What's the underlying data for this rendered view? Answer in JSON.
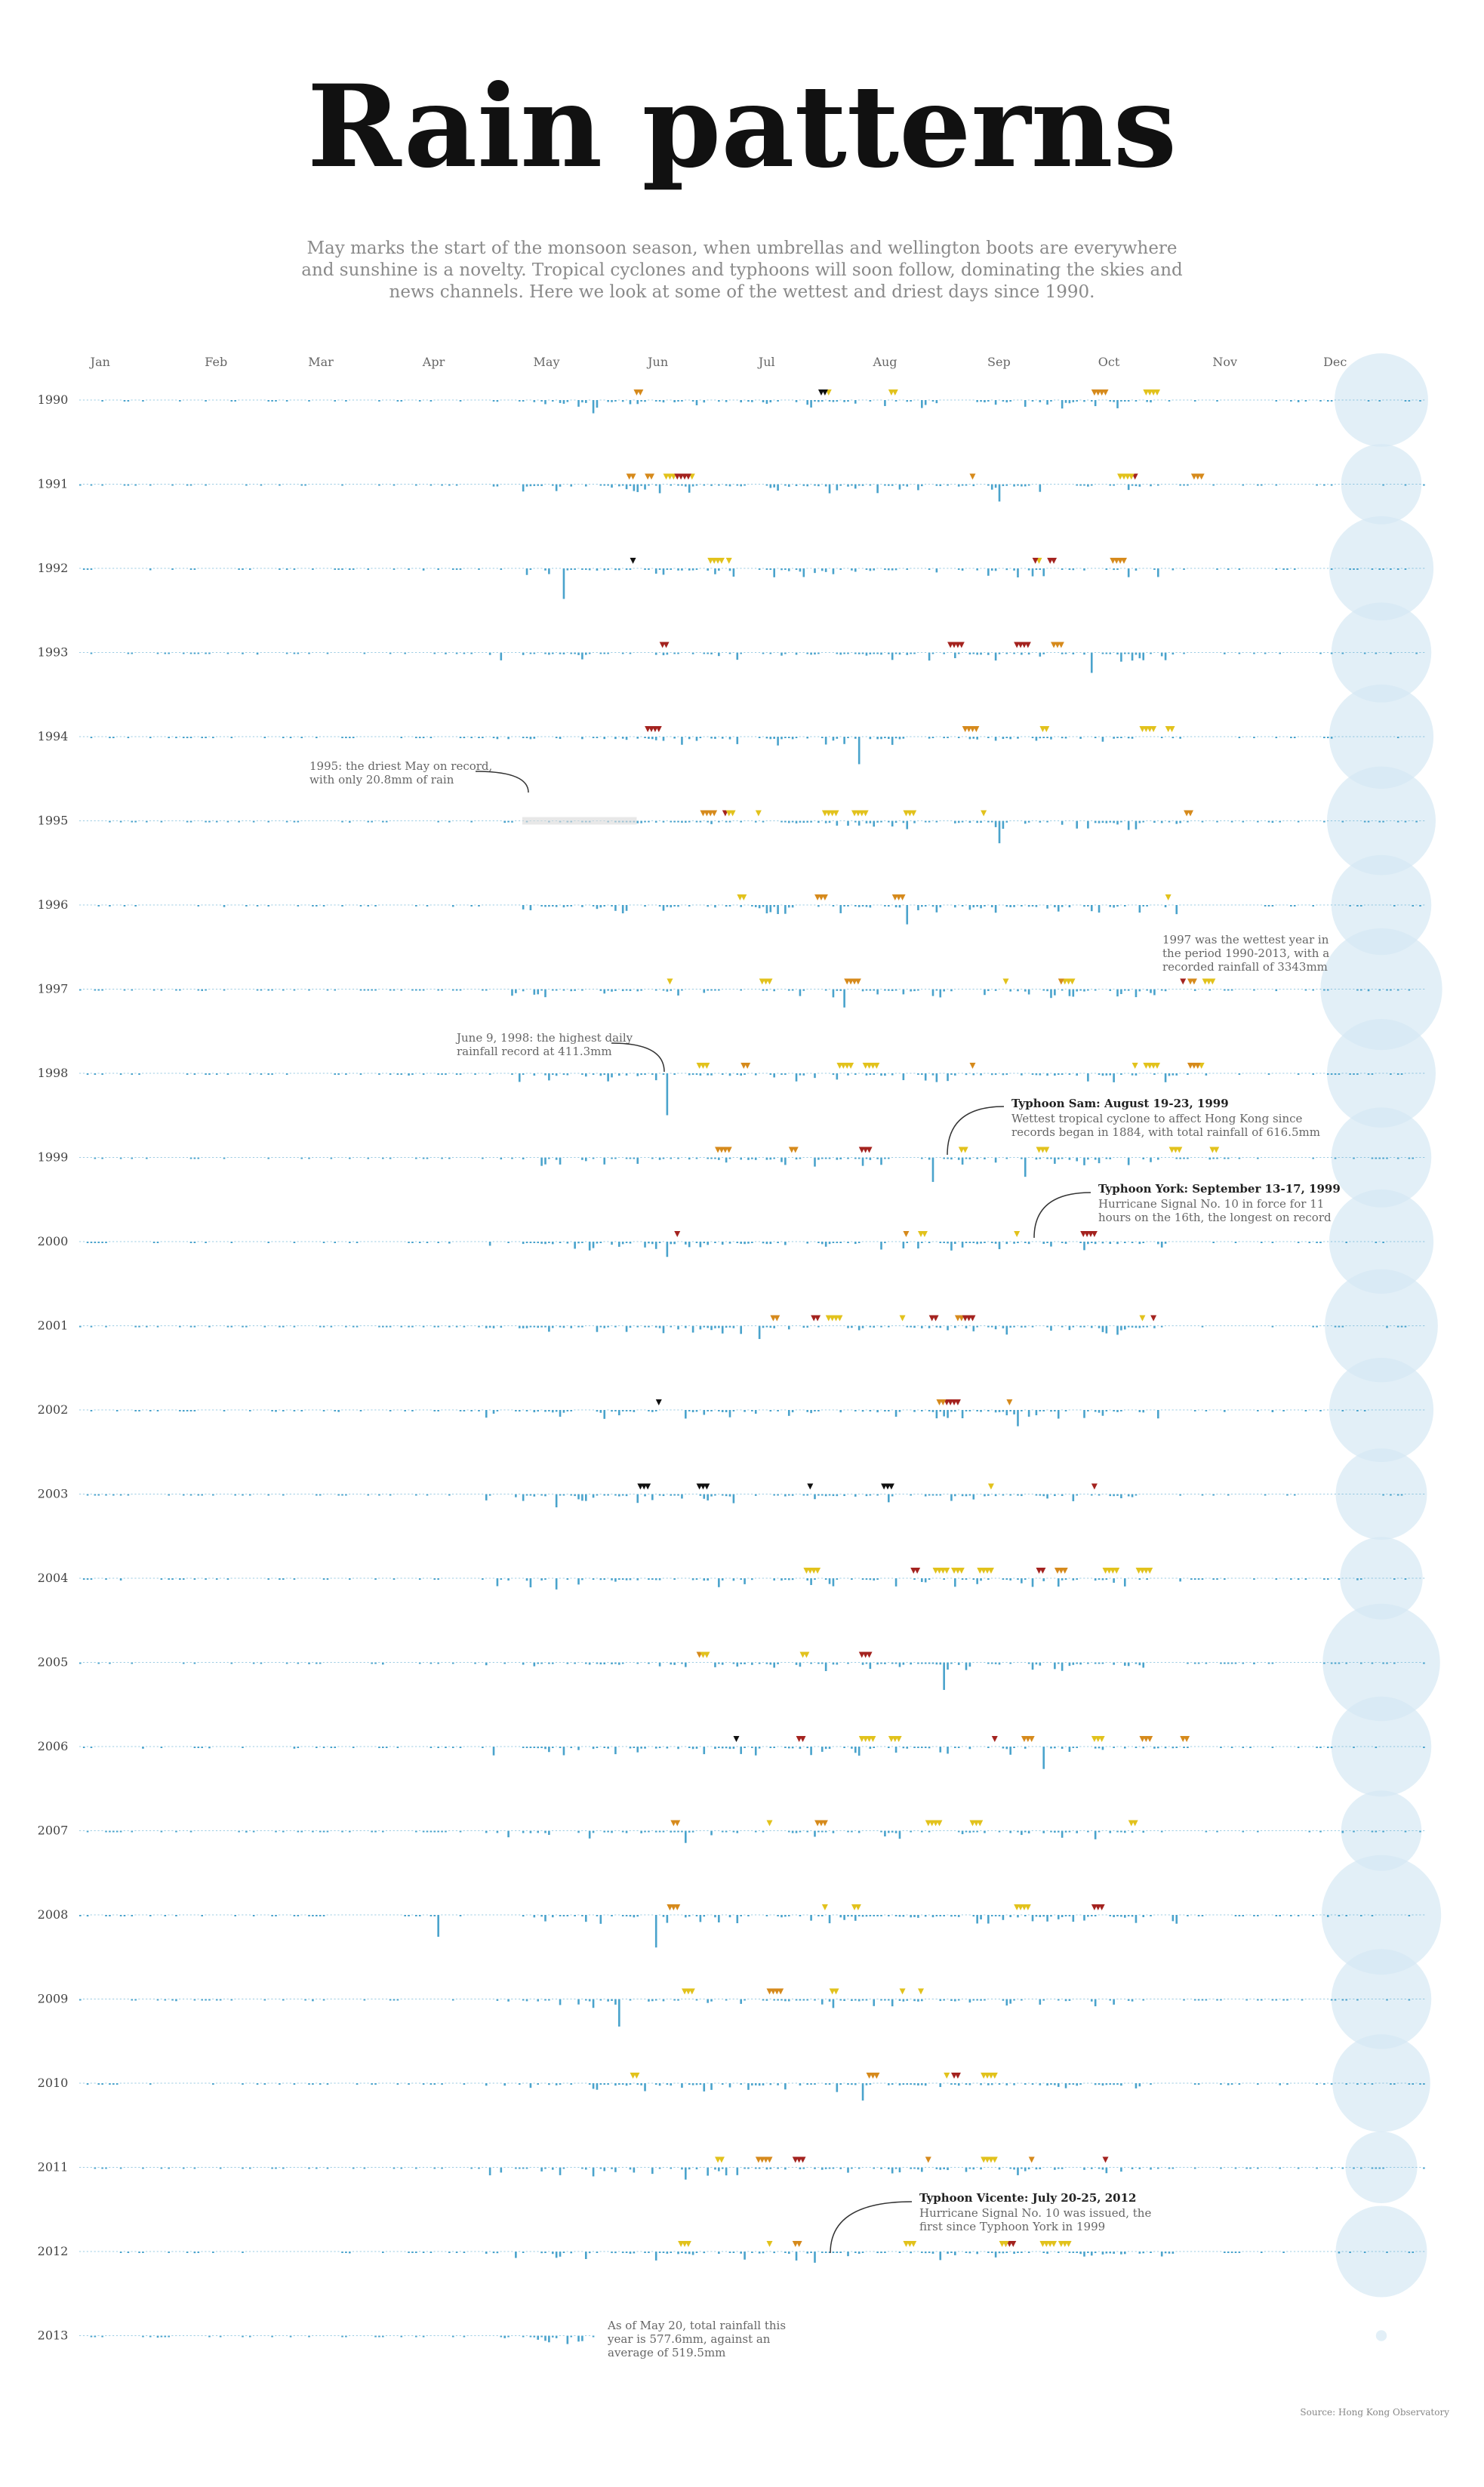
{
  "chart_data": {
    "type": "bar",
    "title": "Rain patterns",
    "subtitle": [
      "May marks the start of the monsoon season, when umbrellas and wellington boots are everywhere",
      "and sunshine is a novelty. Tropical cyclones and typhoons will soon follow, dominating the skies and",
      "news channels. Here we look at some of the wettest and driest days since 1990."
    ],
    "months": [
      "Jan",
      "Feb",
      "Mar",
      "Apr",
      "May",
      "Jun",
      "Jul",
      "Aug",
      "Sep",
      "Oct",
      "Nov",
      "Dec"
    ],
    "years": [
      "1990",
      "1991",
      "1992",
      "1993",
      "1994",
      "1995",
      "1996",
      "1997",
      "1998",
      "1999",
      "2000",
      "2001",
      "2002",
      "2003",
      "2004",
      "2005",
      "2006",
      "2007",
      "2008",
      "2009",
      "2010",
      "2011",
      "2012",
      "2013"
    ],
    "colors": {
      "bar": "#4aa3cc",
      "circle": "#d6e8f3",
      "cyclone_low": "#e2c21c",
      "cyclone_mid": "#d68a1c",
      "cyclone_high": "#a4231f",
      "cyclone_max": "#111111"
    },
    "big_days": [
      {
        "year": "1990",
        "doy": 140,
        "mm": 130
      },
      {
        "year": "1991",
        "doy": 250,
        "mm": 170
      },
      {
        "year": "1992",
        "doy": 132,
        "mm": 300
      },
      {
        "year": "1993",
        "doy": 275,
        "mm": 200
      },
      {
        "year": "1994",
        "doy": 212,
        "mm": 270
      },
      {
        "year": "1995",
        "doy": 250,
        "mm": 220
      },
      {
        "year": "1996",
        "doy": 225,
        "mm": 190
      },
      {
        "year": "1997",
        "doy": 208,
        "mm": 180
      },
      {
        "year": "1998",
        "doy": 160,
        "mm": 411.3
      },
      {
        "year": "1999",
        "doy": 232,
        "mm": 240
      },
      {
        "year": "1999",
        "doy": 257,
        "mm": 190
      },
      {
        "year": "2000",
        "doy": 160,
        "mm": 150
      },
      {
        "year": "2001",
        "doy": 185,
        "mm": 130
      },
      {
        "year": "2002",
        "doy": 255,
        "mm": 160
      },
      {
        "year": "2003",
        "doy": 130,
        "mm": 130
      },
      {
        "year": "2004",
        "doy": 130,
        "mm": 110
      },
      {
        "year": "2005",
        "doy": 235,
        "mm": 270
      },
      {
        "year": "2006",
        "doy": 262,
        "mm": 220
      },
      {
        "year": "2007",
        "doy": 165,
        "mm": 120
      },
      {
        "year": "2008",
        "doy": 157,
        "mm": 320
      },
      {
        "year": "2008",
        "doy": 98,
        "mm": 215
      },
      {
        "year": "2009",
        "doy": 147,
        "mm": 270
      },
      {
        "year": "2010",
        "doy": 213,
        "mm": 170
      },
      {
        "year": "2011",
        "doy": 165,
        "mm": 120
      },
      {
        "year": "2012",
        "doy": 200,
        "mm": 110
      },
      {
        "year": "2013",
        "doy": 125,
        "mm": 40
      }
    ],
    "annual_circle_relative_size": [
      0.86,
      0.74,
      0.96,
      0.92,
      0.96,
      1.0,
      0.92,
      1.12,
      1.0,
      0.92,
      0.96,
      1.04,
      0.96,
      0.84,
      0.76,
      1.08,
      0.92,
      0.74,
      1.1,
      0.92,
      0.9,
      0.66,
      0.84,
      0.1
    ],
    "annotations": [
      {
        "year": "1995",
        "lines": [
          "1995: the driest May on record,",
          "with only 20.8mm of rain"
        ]
      },
      {
        "year": "1997",
        "lines": [
          "1997 was the wettest year in",
          "the period 1990-2013, with a",
          "recorded rainfall of 3343mm"
        ]
      },
      {
        "year": "1998",
        "lines": [
          "June 9, 1998: the highest daily",
          "rainfall record at 411.3mm"
        ]
      },
      {
        "year": "1999",
        "title": "Typhoon Sam: August 19-23, 1999",
        "lines": [
          "Wettest tropical cyclone to affect Hong Kong since",
          "records began in 1884, with total rainfall of 616.5mm"
        ]
      },
      {
        "year": "1999",
        "title": "Typhoon York: September 13-17, 1999",
        "lines": [
          "Hurricane Signal No. 10 in force for 11",
          "hours on the 16th, the longest on record"
        ]
      },
      {
        "year": "2012",
        "title": "Typhoon Vicente: July 20-25, 2012",
        "lines": [
          "Hurricane Signal No. 10 was issued, the",
          "first since Typhoon York in 1999"
        ]
      },
      {
        "year": "2013",
        "lines": [
          "As of May 20, total rainfall this",
          "year is 577.6mm, against an",
          "average of 519.5mm"
        ]
      }
    ],
    "source": "Source: Hong Kong Observatory"
  }
}
